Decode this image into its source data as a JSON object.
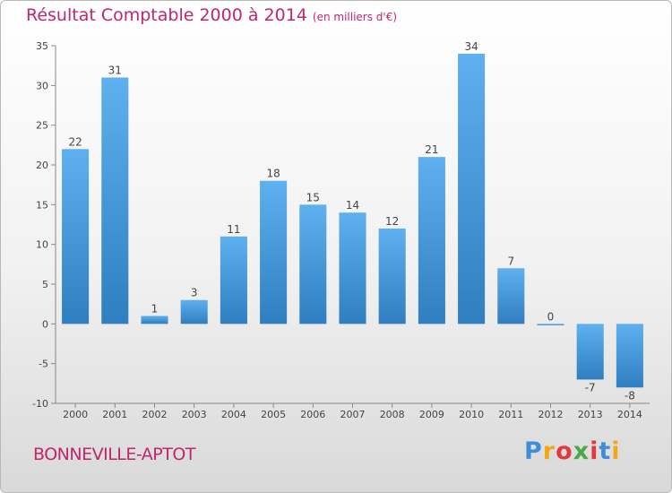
{
  "chart_data": {
    "type": "bar",
    "title": "Résultat Comptable 2000 à 2014",
    "subtitle": "(en milliers d'€)",
    "categories": [
      "2000",
      "2001",
      "2002",
      "2003",
      "2004",
      "2005",
      "2006",
      "2007",
      "2008",
      "2009",
      "2010",
      "2011",
      "2012",
      "2013",
      "2014"
    ],
    "values": [
      22,
      31,
      1,
      3,
      11,
      18,
      15,
      14,
      12,
      21,
      34,
      7,
      0,
      -7,
      -8
    ],
    "value_labels": [
      "22",
      "31",
      "1",
      "3",
      "11",
      "18",
      "15",
      "14",
      "12",
      "21",
      "34",
      "7",
      "0",
      "-7",
      "-8"
    ],
    "ylim": [
      -10,
      35
    ],
    "yticks": [
      -10,
      -5,
      0,
      5,
      10,
      15,
      20,
      25,
      30,
      35
    ],
    "xlabel": "",
    "ylabel": "",
    "grid": false,
    "bar_color": "#4a9fe0"
  },
  "footer": {
    "place": "BONNEVILLE-APTOT",
    "logo": [
      "P",
      "r",
      "o",
      "x",
      "i",
      "t",
      "i"
    ],
    "logo_colors": [
      "#3e8ed6",
      "#f1a81b",
      "#e2383f",
      "#4aa84a",
      "#e2383f",
      "#3e8ed6",
      "#f1a81b"
    ]
  }
}
